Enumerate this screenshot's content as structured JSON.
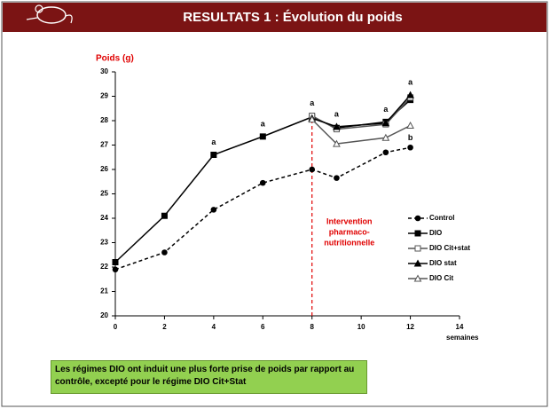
{
  "header": {
    "title": "RESULTATS 1 : Évolution du poids"
  },
  "chart_data": {
    "type": "line",
    "y_label": "Poids (g)",
    "x_label": "semaines",
    "x": [
      0,
      2,
      4,
      6,
      8,
      9,
      11,
      12
    ],
    "xlim": [
      0,
      14
    ],
    "xticks": [
      0,
      2,
      4,
      6,
      8,
      10,
      12,
      14
    ],
    "ylim": [
      20,
      30
    ],
    "yticks": [
      20,
      21,
      22,
      23,
      24,
      25,
      26,
      27,
      28,
      29,
      30
    ],
    "grid": false,
    "series": [
      {
        "name": "Control",
        "color": "#000000",
        "dash": true,
        "marker": "circle",
        "filled": true,
        "values": [
          21.9,
          22.6,
          24.35,
          25.45,
          26.0,
          25.65,
          26.7,
          26.9
        ]
      },
      {
        "name": "DIO",
        "color": "#000000",
        "dash": false,
        "marker": "square",
        "filled": true,
        "values": [
          22.2,
          24.1,
          26.6,
          27.35,
          28.15,
          27.7,
          27.95,
          28.85
        ]
      },
      {
        "name": "DIO Cit+stat",
        "color": "#555555",
        "dash": false,
        "marker": "square",
        "filled": false,
        "values": [
          null,
          null,
          null,
          null,
          28.2,
          27.65,
          27.85,
          28.95
        ]
      },
      {
        "name": "DIO stat",
        "color": "#000000",
        "dash": false,
        "marker": "triangle",
        "filled": true,
        "values": [
          null,
          null,
          null,
          null,
          28.1,
          27.75,
          27.9,
          29.05
        ]
      },
      {
        "name": "DIO Cit",
        "color": "#555555",
        "dash": false,
        "marker": "triangle",
        "filled": false,
        "values": [
          null,
          null,
          null,
          null,
          28.05,
          27.05,
          27.3,
          27.8
        ]
      }
    ],
    "annotations": [
      {
        "x": 4,
        "y": 26.6,
        "text": "a"
      },
      {
        "x": 6,
        "y": 27.35,
        "text": "a"
      },
      {
        "x": 8,
        "y": 28.2,
        "text": "a"
      },
      {
        "x": 9,
        "y": 27.75,
        "text": "a"
      },
      {
        "x": 11,
        "y": 27.95,
        "text": "a"
      },
      {
        "x": 12,
        "y": 29.05,
        "text": "a"
      },
      {
        "x": 12,
        "y": 27.8,
        "text": "b"
      }
    ],
    "intervention": {
      "x": 8,
      "lines": [
        "Intervention",
        "pharmaco-",
        "nutritionnelle"
      ],
      "color": "#e00000"
    }
  },
  "footer": {
    "text": "Les régimes DIO ont induit une plus forte prise de poids par rapport au contrôle, excepté pour le régime DIO Cit+Stat"
  }
}
